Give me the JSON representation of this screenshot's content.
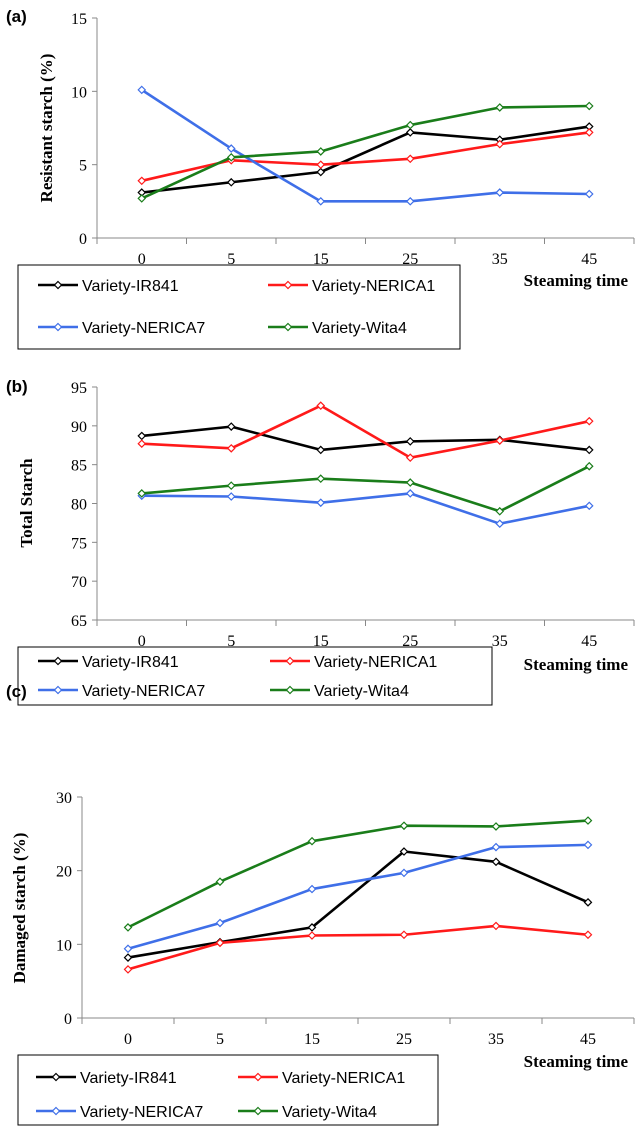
{
  "chart_data": [
    {
      "type": "line",
      "panel_label": "(a)",
      "categories": [
        "0",
        "5",
        "15",
        "25",
        "35",
        "45"
      ],
      "ylabel": "Resistant starch (%)",
      "xlabel": "Steaming time",
      "ylim": [
        0,
        15
      ],
      "yticks": [
        0,
        5,
        10,
        15
      ],
      "series": [
        {
          "name": "Variety-IR841",
          "color": "#000000",
          "values": [
            3.1,
            3.8,
            4.5,
            7.2,
            6.7,
            7.6
          ]
        },
        {
          "name": "Variety-NERICA1",
          "color": "#ff1a1a",
          "values": [
            3.9,
            5.3,
            5.0,
            5.4,
            6.4,
            7.2
          ]
        },
        {
          "name": "Variety-NERICA7",
          "color": "#3f6fe8",
          "values": [
            10.1,
            6.1,
            2.5,
            2.5,
            3.1,
            3.0
          ]
        },
        {
          "name": "Variety-Wita4",
          "color": "#1a7d1a",
          "values": [
            2.7,
            5.5,
            5.9,
            7.7,
            8.9,
            9.0
          ]
        }
      ]
    },
    {
      "type": "line",
      "panel_label": "(b)",
      "categories": [
        "0",
        "5",
        "15",
        "25",
        "35",
        "45"
      ],
      "ylabel": "Total Starch",
      "xlabel": "Steaming time",
      "ylim": [
        65,
        95
      ],
      "yticks": [
        65,
        70,
        75,
        80,
        85,
        90,
        95
      ],
      "series": [
        {
          "name": "Variety-IR841",
          "color": "#000000",
          "values": [
            88.7,
            89.9,
            86.9,
            88.0,
            88.2,
            86.9
          ]
        },
        {
          "name": "Variety-NERICA1",
          "color": "#ff1a1a",
          "values": [
            87.7,
            87.1,
            92.6,
            85.9,
            88.1,
            90.6
          ]
        },
        {
          "name": "Variety-NERICA7",
          "color": "#3f6fe8",
          "values": [
            81.0,
            80.9,
            80.1,
            81.3,
            77.4,
            79.7
          ]
        },
        {
          "name": "Variety-Wita4",
          "color": "#1a7d1a",
          "values": [
            81.3,
            82.3,
            83.2,
            82.7,
            79.0,
            84.8
          ]
        }
      ]
    },
    {
      "type": "line",
      "panel_label": "(c)",
      "categories": [
        "0",
        "5",
        "15",
        "25",
        "35",
        "45"
      ],
      "ylabel": "Damaged starch (%)",
      "xlabel": "Steaming time",
      "ylim": [
        0,
        30
      ],
      "yticks": [
        0,
        10,
        20,
        30
      ],
      "series": [
        {
          "name": "Variety-IR841",
          "color": "#000000",
          "values": [
            8.2,
            10.3,
            12.3,
            22.6,
            21.2,
            15.7
          ]
        },
        {
          "name": "Variety-NERICA1",
          "color": "#ff1a1a",
          "values": [
            6.6,
            10.2,
            11.2,
            11.3,
            12.5,
            11.3
          ]
        },
        {
          "name": "Variety-NERICA7",
          "color": "#3f6fe8",
          "values": [
            9.4,
            12.9,
            17.5,
            19.7,
            23.2,
            23.5
          ]
        },
        {
          "name": "Variety-Wita4",
          "color": "#1a7d1a",
          "values": [
            12.3,
            18.5,
            24.0,
            26.1,
            26.0,
            26.8
          ]
        }
      ]
    }
  ]
}
